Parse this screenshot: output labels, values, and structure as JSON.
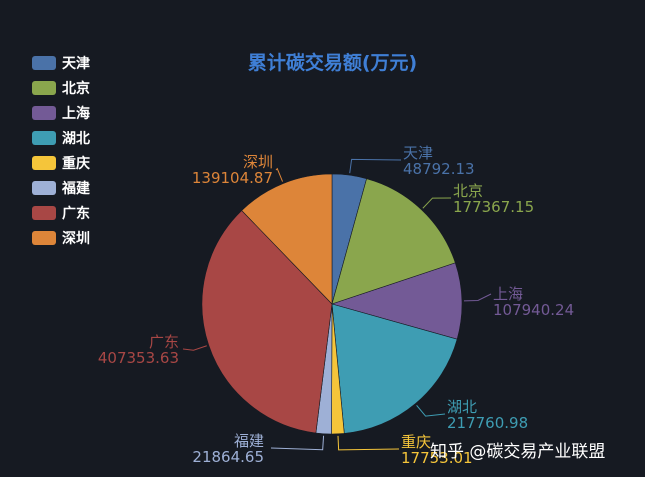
{
  "chart_data": {
    "type": "pie",
    "title": "累计碳交易额(万元)",
    "legend_position": "left-top",
    "categories": [
      "天津",
      "北京",
      "上海",
      "湖北",
      "重庆",
      "福建",
      "广东",
      "深圳"
    ],
    "values": [
      48792.13,
      177367.15,
      107940.24,
      217760.98,
      17753.01,
      21864.65,
      407353.63,
      139104.87
    ],
    "value_labels": [
      "48792.13",
      "177367.15",
      "107940.24",
      "217760.98",
      "17753.01",
      "21864.65",
      "407353.63",
      "139104.87"
    ],
    "colors": [
      "#4a72a8",
      "#8aa64d",
      "#735a96",
      "#3e9db3",
      "#f5c53a",
      "#9eb0d6",
      "#a84745",
      "#dd8539"
    ]
  },
  "watermark": "知乎 @碳交易产业联盟"
}
